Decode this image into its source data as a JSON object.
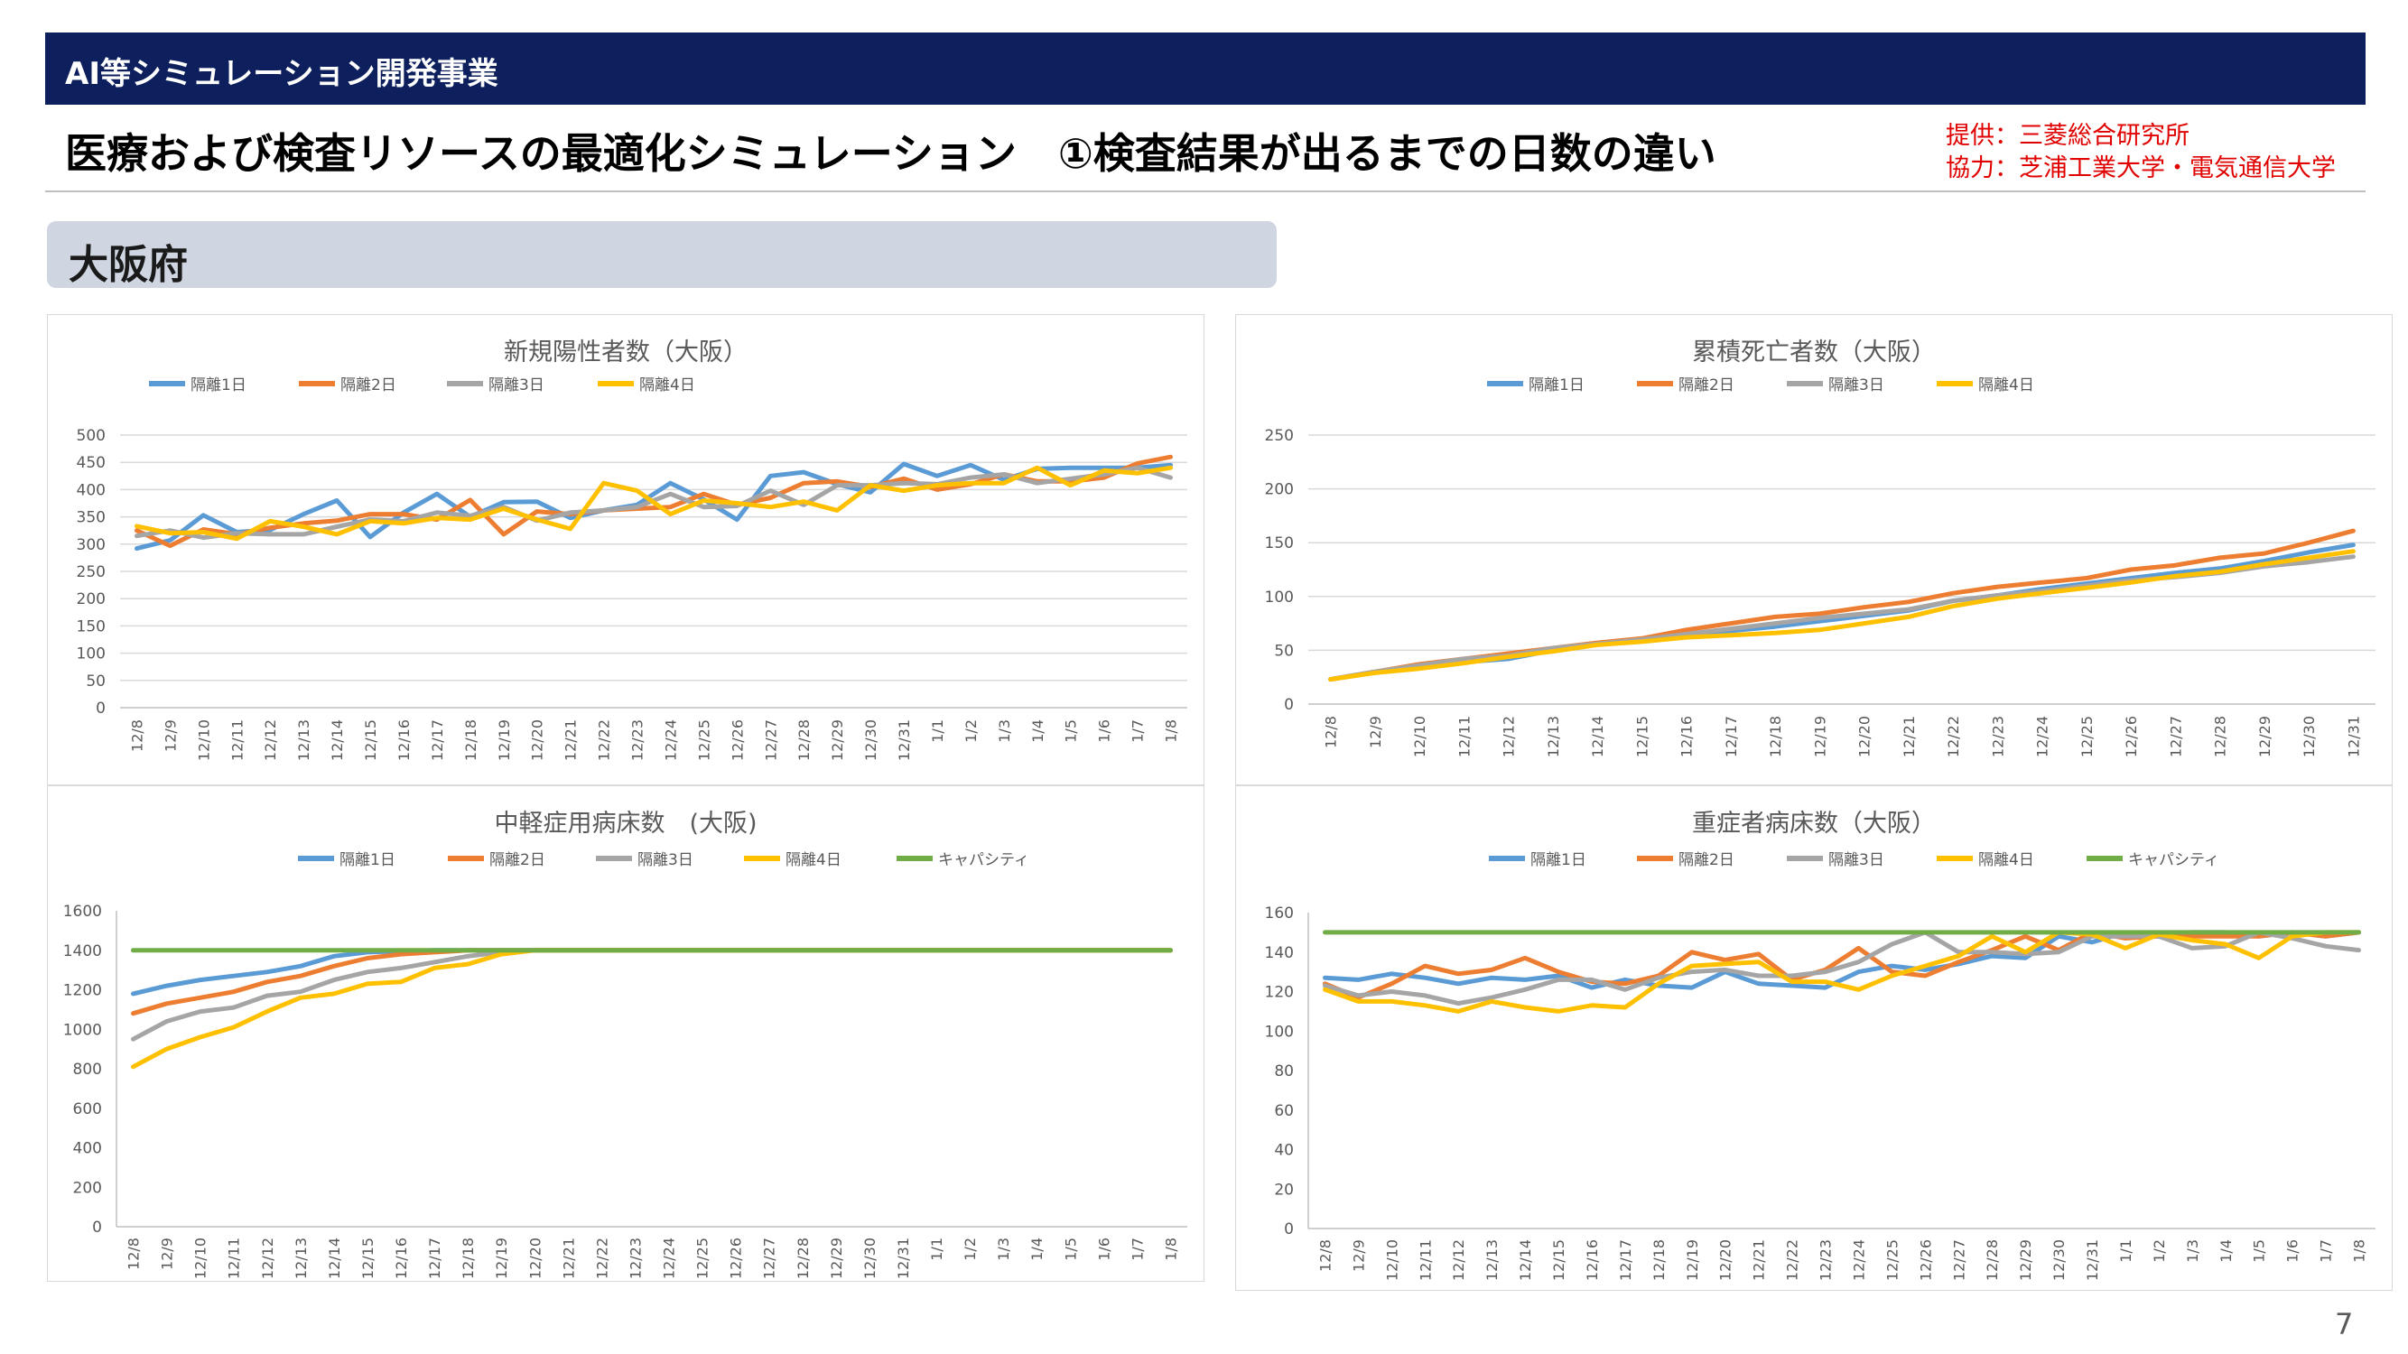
{
  "header": {
    "section_label": "AI等シミュレーション開発事業"
  },
  "title": "医療および検査リソースの最適化シミュレーション　①検査結果が出るまでの日数の違い",
  "credits": {
    "provider": "提供：三菱総合研究所",
    "cooperation": "協力：芝浦工業大学・電気通信大学"
  },
  "region": "大阪府",
  "page_number": "7",
  "colors": {
    "header_bg": "#0d1f5c",
    "credit_text": "#e00000",
    "region_tab_bg": "#cfd6e2",
    "series_1": "#5b9bd5",
    "series_2": "#ed7d31",
    "series_3": "#a5a5a5",
    "series_4": "#ffc000",
    "capacity": "#70ad47"
  },
  "chart_data": [
    {
      "type": "line",
      "title": "新規陽性者数（大阪）",
      "ylim": [
        0,
        500
      ],
      "yticks": [
        0,
        50,
        100,
        150,
        200,
        250,
        300,
        350,
        400,
        450,
        500
      ],
      "legend_position": "top",
      "grid": true,
      "categories": [
        "12/8",
        "12/9",
        "12/10",
        "12/11",
        "12/12",
        "12/13",
        "12/14",
        "12/15",
        "12/16",
        "12/17",
        "12/18",
        "12/19",
        "12/20",
        "12/21",
        "12/22",
        "12/23",
        "12/24",
        "12/25",
        "12/26",
        "12/27",
        "12/28",
        "12/29",
        "12/30",
        "12/31",
        "1/1",
        "1/2",
        "1/3",
        "1/4",
        "1/5",
        "1/6",
        "1/7",
        "1/8"
      ],
      "series": [
        {
          "name": "隔離1日",
          "color": "#5b9bd5",
          "values": [
            292,
            307,
            353,
            322,
            326,
            355,
            380,
            313,
            358,
            392,
            350,
            377,
            378,
            348,
            362,
            372,
            412,
            382,
            345,
            425,
            432,
            410,
            395,
            447,
            425,
            445,
            418,
            438,
            440,
            440,
            440,
            445
          ]
        },
        {
          "name": "隔離2日",
          "color": "#ed7d31",
          "values": [
            325,
            297,
            327,
            318,
            330,
            338,
            343,
            355,
            355,
            345,
            381,
            318,
            360,
            355,
            362,
            365,
            368,
            392,
            372,
            385,
            412,
            415,
            405,
            420,
            400,
            410,
            428,
            415,
            415,
            422,
            448,
            460
          ]
        },
        {
          "name": "隔離3日",
          "color": "#a5a5a5",
          "values": [
            315,
            325,
            312,
            320,
            318,
            318,
            332,
            345,
            342,
            358,
            352,
            368,
            343,
            358,
            362,
            368,
            392,
            368,
            370,
            398,
            372,
            408,
            408,
            412,
            410,
            422,
            428,
            412,
            420,
            428,
            440,
            422
          ]
        },
        {
          "name": "隔離4日",
          "color": "#ffc000",
          "values": [
            333,
            320,
            322,
            310,
            342,
            332,
            318,
            342,
            338,
            348,
            345,
            365,
            345,
            328,
            412,
            398,
            355,
            380,
            375,
            368,
            378,
            362,
            408,
            398,
            408,
            412,
            412,
            440,
            408,
            435,
            430,
            440
          ]
        }
      ]
    },
    {
      "type": "line",
      "title": "累積死亡者数（大阪）",
      "ylim": [
        0,
        250
      ],
      "yticks": [
        0,
        50,
        100,
        150,
        200,
        250
      ],
      "legend_position": "top",
      "grid": true,
      "categories": [
        "12/8",
        "12/9",
        "12/10",
        "12/11",
        "12/12",
        "12/13",
        "12/14",
        "12/15",
        "12/16",
        "12/17",
        "12/18",
        "12/19",
        "12/20",
        "12/21",
        "12/22",
        "12/23",
        "12/24",
        "12/25",
        "12/26",
        "12/27",
        "12/28",
        "12/29",
        "12/30",
        "12/31"
      ],
      "series": [
        {
          "name": "隔離1日",
          "color": "#5b9bd5",
          "values": [
            23,
            30,
            35,
            39,
            42,
            50,
            56,
            60,
            64,
            68,
            72,
            77,
            82,
            87,
            96,
            101,
            107,
            112,
            117,
            122,
            126,
            133,
            141,
            148
          ]
        },
        {
          "name": "隔離2日",
          "color": "#ed7d31",
          "values": [
            23,
            30,
            37,
            42,
            47,
            52,
            57,
            61,
            69,
            75,
            81,
            84,
            90,
            95,
            103,
            109,
            113,
            117,
            125,
            129,
            136,
            140,
            150,
            161
          ]
        },
        {
          "name": "隔離3日",
          "color": "#a5a5a5",
          "values": [
            23,
            30,
            36,
            42,
            45,
            52,
            56,
            60,
            65,
            70,
            75,
            80,
            84,
            88,
            96,
            101,
            105,
            110,
            115,
            118,
            122,
            128,
            132,
            137
          ]
        },
        {
          "name": "隔離4日",
          "color": "#ffc000",
          "values": [
            23,
            29,
            33,
            38,
            44,
            49,
            55,
            58,
            62,
            64,
            66,
            69,
            75,
            81,
            91,
            98,
            103,
            108,
            113,
            119,
            123,
            130,
            136,
            142
          ]
        }
      ]
    },
    {
      "type": "line",
      "title": "中軽症用病床数　(大阪)",
      "ylim": [
        0,
        1600
      ],
      "yticks": [
        0,
        200,
        400,
        600,
        800,
        1000,
        1200,
        1400,
        1600
      ],
      "legend_position": "top",
      "grid": false,
      "categories": [
        "12/8",
        "12/9",
        "12/10",
        "12/11",
        "12/12",
        "12/13",
        "12/14",
        "12/15",
        "12/16",
        "12/17",
        "12/18",
        "12/19",
        "12/20",
        "12/21",
        "12/22",
        "12/23",
        "12/24",
        "12/25",
        "12/26",
        "12/27",
        "12/28",
        "12/29",
        "12/30",
        "12/31",
        "1/1",
        "1/2",
        "1/3",
        "1/4",
        "1/5",
        "1/6",
        "1/7",
        "1/8"
      ],
      "series": [
        {
          "name": "隔離1日",
          "color": "#5b9bd5",
          "values": [
            1180,
            1220,
            1250,
            1270,
            1290,
            1320,
            1370,
            1390,
            1395,
            1400,
            1400,
            1400,
            1400,
            1400,
            1400,
            1400,
            1400,
            1400,
            1400,
            1400,
            1400,
            1400,
            1400,
            1400,
            1400,
            1400,
            1400,
            1400,
            1400,
            1400,
            1400,
            1400
          ]
        },
        {
          "name": "隔離2日",
          "color": "#ed7d31",
          "values": [
            1080,
            1130,
            1160,
            1190,
            1240,
            1270,
            1320,
            1360,
            1380,
            1390,
            1400,
            1400,
            1400,
            1400,
            1400,
            1400,
            1400,
            1400,
            1400,
            1400,
            1400,
            1400,
            1400,
            1400,
            1400,
            1400,
            1400,
            1400,
            1400,
            1400,
            1400,
            1400
          ]
        },
        {
          "name": "隔離3日",
          "color": "#a5a5a5",
          "values": [
            950,
            1040,
            1090,
            1110,
            1170,
            1190,
            1250,
            1290,
            1310,
            1340,
            1370,
            1390,
            1400,
            1400,
            1400,
            1400,
            1400,
            1400,
            1400,
            1400,
            1400,
            1400,
            1400,
            1400,
            1400,
            1400,
            1400,
            1400,
            1400,
            1400,
            1400,
            1400
          ]
        },
        {
          "name": "隔離4日",
          "color": "#ffc000",
          "values": [
            810,
            900,
            960,
            1010,
            1090,
            1160,
            1180,
            1230,
            1240,
            1310,
            1330,
            1380,
            1400,
            1400,
            1400,
            1400,
            1400,
            1400,
            1400,
            1400,
            1400,
            1400,
            1400,
            1400,
            1400,
            1400,
            1400,
            1400,
            1400,
            1400,
            1400,
            1400
          ]
        },
        {
          "name": "キャパシティ",
          "color": "#70ad47",
          "values": [
            1400,
            1400,
            1400,
            1400,
            1400,
            1400,
            1400,
            1400,
            1400,
            1400,
            1400,
            1400,
            1400,
            1400,
            1400,
            1400,
            1400,
            1400,
            1400,
            1400,
            1400,
            1400,
            1400,
            1400,
            1400,
            1400,
            1400,
            1400,
            1400,
            1400,
            1400,
            1400
          ]
        }
      ]
    },
    {
      "type": "line",
      "title": "重症者病床数（大阪）",
      "ylim": [
        0,
        160
      ],
      "yticks": [
        0,
        20,
        40,
        60,
        80,
        100,
        120,
        140,
        160
      ],
      "legend_position": "top",
      "grid": false,
      "categories": [
        "12/8",
        "12/9",
        "12/10",
        "12/11",
        "12/12",
        "12/13",
        "12/14",
        "12/15",
        "12/16",
        "12/17",
        "12/18",
        "12/19",
        "12/20",
        "12/21",
        "12/22",
        "12/23",
        "12/24",
        "12/25",
        "12/26",
        "12/27",
        "12/28",
        "12/29",
        "12/30",
        "12/31",
        "1/1",
        "1/2",
        "1/3",
        "1/4",
        "1/5",
        "1/6",
        "1/7",
        "1/8"
      ],
      "series": [
        {
          "name": "隔離1日",
          "color": "#5b9bd5",
          "values": [
            127,
            126,
            129,
            127,
            124,
            127,
            126,
            128,
            122,
            126,
            123,
            122,
            130,
            124,
            123,
            122,
            130,
            133,
            131,
            134,
            138,
            137,
            148,
            145,
            150,
            148,
            150,
            150,
            148,
            150,
            148,
            150
          ]
        },
        {
          "name": "隔離2日",
          "color": "#ed7d31",
          "values": [
            124,
            117,
            124,
            133,
            129,
            131,
            137,
            130,
            125,
            124,
            128,
            140,
            136,
            139,
            126,
            131,
            142,
            130,
            128,
            135,
            141,
            148,
            141,
            150,
            147,
            148,
            148,
            148,
            148,
            150,
            148,
            150
          ]
        },
        {
          "name": "隔離3日",
          "color": "#a5a5a5",
          "values": [
            123,
            118,
            120,
            118,
            114,
            117,
            121,
            126,
            126,
            121,
            127,
            130,
            131,
            128,
            128,
            130,
            135,
            144,
            150,
            140,
            140,
            139,
            140,
            148,
            148,
            148,
            142,
            143,
            150,
            147,
            143,
            141
          ]
        },
        {
          "name": "隔離4日",
          "color": "#ffc000",
          "values": [
            121,
            115,
            115,
            113,
            110,
            115,
            112,
            110,
            113,
            112,
            124,
            133,
            134,
            135,
            125,
            125,
            121,
            128,
            133,
            138,
            148,
            140,
            150,
            149,
            142,
            149,
            146,
            144,
            137,
            148,
            150,
            150
          ]
        },
        {
          "name": "キャパシティ",
          "color": "#70ad47",
          "values": [
            150,
            150,
            150,
            150,
            150,
            150,
            150,
            150,
            150,
            150,
            150,
            150,
            150,
            150,
            150,
            150,
            150,
            150,
            150,
            150,
            150,
            150,
            150,
            150,
            150,
            150,
            150,
            150,
            150,
            150,
            150,
            150
          ]
        }
      ]
    }
  ]
}
